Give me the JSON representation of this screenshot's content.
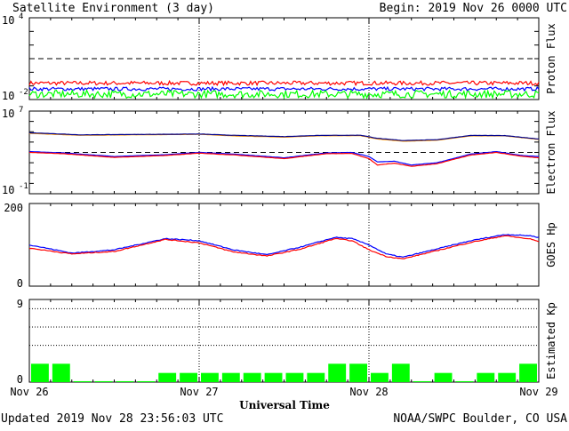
{
  "header": {
    "title": "Satellite Environment (3 day)",
    "begin": "Begin:  2019 Nov 26 0000 UTC"
  },
  "footer": {
    "updated": "Updated 2019 Nov 28 23:56:03 UTC",
    "credit": "NOAA/SWPC Boulder, CO USA",
    "xlabel": "Universal Time"
  },
  "x_ticks": [
    "Nov 26",
    "Nov 27",
    "Nov 28",
    "Nov 29"
  ],
  "colors": {
    "red": "#ff0000",
    "blue": "#0000ff",
    "green": "#00ff00",
    "orange": "#ff9900",
    "navy": "#00008b",
    "grid": "#000000"
  },
  "chart_data": [
    {
      "type": "line",
      "name": "proton_flux",
      "ylabel": "Proton Flux",
      "scale": "log",
      "ylim": [
        0.01,
        10000
      ],
      "ytick_labels": [
        {
          "base": "10",
          "exp": "4"
        },
        {
          "base": "10",
          "exp": "-2"
        }
      ],
      "threshold": 10,
      "x_days": [
        0,
        3
      ],
      "series": [
        {
          "color": "red",
          "level": 0.16,
          "noise": 0.15
        },
        {
          "color": "blue",
          "level": 0.06,
          "noise": 0.13
        },
        {
          "color": "green",
          "level": 0.025,
          "noise": 0.28
        }
      ]
    },
    {
      "type": "line",
      "name": "electron_flux",
      "ylabel": "Electron Flux",
      "scale": "log",
      "ylim": [
        0.1,
        10000000
      ],
      "ytick_labels": [
        {
          "base": "10",
          "exp": "7"
        },
        {
          "base": "10",
          "exp": "-1"
        }
      ],
      "threshold": 1000,
      "series": [
        {
          "color": "orange",
          "x": [
            0,
            0.3,
            0.6,
            1.0,
            1.2,
            1.5,
            1.7,
            1.95,
            2.05,
            2.2,
            2.4,
            2.6,
            2.8,
            3.0
          ],
          "y": [
            70000,
            45000,
            50000,
            56000,
            40000,
            30000,
            40000,
            42000,
            20000,
            12000,
            15000,
            40000,
            40000,
            18000
          ]
        },
        {
          "color": "navy",
          "x": [
            0,
            0.3,
            0.6,
            1.0,
            1.2,
            1.5,
            1.7,
            1.95,
            2.05,
            2.2,
            2.4,
            2.6,
            2.8,
            3.0
          ],
          "y": [
            80000,
            50000,
            54000,
            60000,
            45000,
            34000,
            44000,
            46000,
            23000,
            14000,
            17000,
            44000,
            42000,
            20000
          ]
        },
        {
          "color": "blue",
          "x": [
            0,
            0.2,
            0.5,
            0.8,
            1.0,
            1.2,
            1.5,
            1.75,
            1.9,
            2.0,
            2.05,
            2.15,
            2.25,
            2.4,
            2.6,
            2.75,
            2.9,
            3.0
          ],
          "y": [
            1200,
            900,
            400,
            600,
            1000,
            700,
            300,
            900,
            1000,
            400,
            120,
            140,
            60,
            100,
            700,
            1200,
            500,
            400
          ]
        },
        {
          "color": "red",
          "x": [
            0,
            0.2,
            0.5,
            0.8,
            1.0,
            1.2,
            1.5,
            1.75,
            1.9,
            2.0,
            2.05,
            2.15,
            2.25,
            2.4,
            2.6,
            2.75,
            2.9,
            3.0
          ],
          "y": [
            1000,
            750,
            330,
            500,
            850,
            580,
            250,
            760,
            800,
            250,
            60,
            90,
            45,
            80,
            560,
            1000,
            420,
            300
          ]
        }
      ]
    },
    {
      "type": "line",
      "name": "goes_hp",
      "ylabel": "GOES Hp",
      "scale": "linear",
      "ylim": [
        0,
        200
      ],
      "ytick_labels": [
        "200",
        "0"
      ],
      "series": [
        {
          "color": "blue",
          "x": [
            0,
            0.25,
            0.5,
            0.8,
            1.0,
            1.2,
            1.4,
            1.6,
            1.8,
            1.9,
            2.0,
            2.1,
            2.2,
            2.4,
            2.6,
            2.8,
            2.95,
            3.0
          ],
          "y": [
            100,
            80,
            88,
            115,
            110,
            88,
            76,
            95,
            118,
            115,
            100,
            78,
            70,
            90,
            110,
            125,
            122,
            118
          ]
        },
        {
          "color": "red",
          "x": [
            0,
            0.25,
            0.5,
            0.8,
            1.0,
            1.2,
            1.4,
            1.6,
            1.8,
            1.9,
            2.0,
            2.1,
            2.2,
            2.4,
            2.6,
            2.8,
            2.95,
            3.0
          ],
          "y": [
            92,
            78,
            84,
            113,
            105,
            83,
            73,
            90,
            115,
            110,
            88,
            72,
            66,
            86,
            106,
            122,
            114,
            108
          ]
        }
      ]
    },
    {
      "type": "bar",
      "name": "estimated_kp",
      "ylabel": "Estimated Kp",
      "scale": "linear",
      "ylim": [
        0,
        9
      ],
      "ytick_labels": [
        "9",
        "0"
      ],
      "gridlines": [
        4,
        6,
        8
      ],
      "color": "green",
      "values": [
        2,
        2,
        0.1,
        0.1,
        0.1,
        0.1,
        1,
        1,
        1,
        1,
        1,
        1,
        1,
        1,
        2,
        2,
        1,
        2,
        0.1,
        1,
        0.1,
        1,
        1,
        2
      ]
    }
  ]
}
